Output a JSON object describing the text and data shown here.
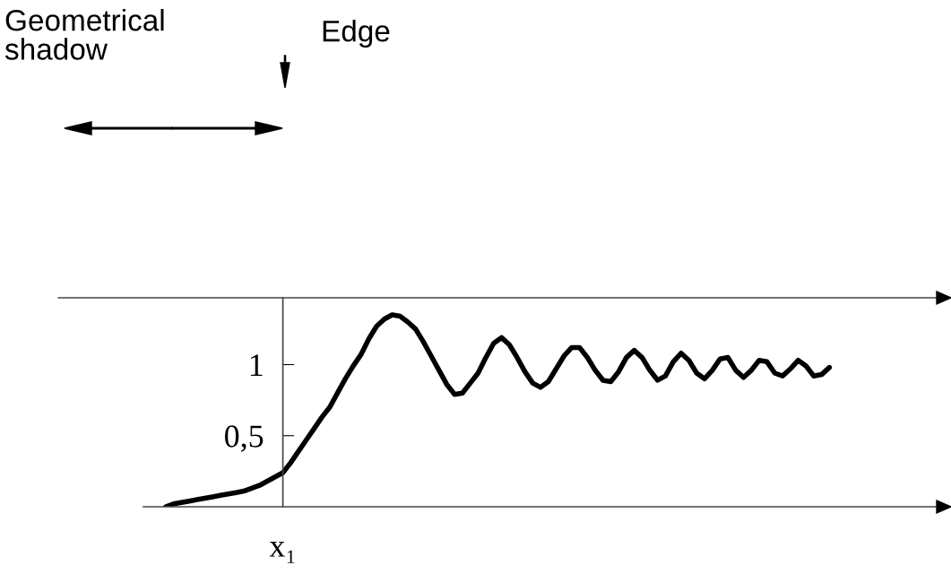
{
  "chart_data": {
    "type": "line",
    "categories": [
      null,
      null,
      null,
      null,
      null,
      null,
      null,
      null,
      null,
      null,
      null,
      null,
      null,
      null,
      null,
      "x₁",
      null,
      null,
      null,
      null,
      null,
      null,
      null,
      null,
      null,
      null,
      null,
      null,
      null,
      null,
      null,
      null,
      null,
      null,
      null,
      null,
      null,
      null,
      null,
      null,
      null,
      null,
      null,
      null,
      null,
      null,
      null,
      null,
      null,
      null,
      null,
      null,
      null,
      null,
      null,
      null,
      null,
      null,
      null,
      null,
      null,
      null,
      null,
      null,
      null,
      null,
      null,
      null,
      null,
      null,
      null,
      null,
      null,
      null,
      null,
      null,
      null,
      null,
      null,
      null,
      null,
      null,
      null,
      null,
      null,
      null
    ],
    "series": [
      {
        "color": "#000000",
        "values": [
          0.0,
          0.02,
          0.03,
          0.04,
          0.05,
          0.06,
          0.07,
          0.08,
          0.09,
          0.1,
          0.11,
          0.13,
          0.15,
          0.18,
          0.21,
          0.24,
          0.31,
          0.39,
          0.47,
          0.55,
          0.63,
          0.7,
          0.8,
          0.9,
          0.99,
          1.07,
          1.18,
          1.27,
          1.32,
          1.35,
          1.34,
          1.3,
          1.25,
          1.16,
          1.06,
          0.96,
          0.86,
          0.79,
          0.8,
          0.87,
          0.94,
          1.05,
          1.15,
          1.19,
          1.14,
          1.05,
          0.95,
          0.87,
          0.84,
          0.88,
          0.97,
          1.06,
          1.12,
          1.12,
          1.05,
          0.96,
          0.89,
          0.88,
          0.95,
          1.05,
          1.1,
          1.05,
          0.96,
          0.89,
          0.92,
          1.02,
          1.08,
          1.03,
          0.94,
          0.9,
          0.96,
          1.04,
          1.05,
          0.96,
          0.91,
          0.96,
          1.03,
          1.02,
          0.94,
          0.92,
          0.97,
          1.03,
          0.99,
          0.92,
          0.93,
          0.98
        ]
      }
    ],
    "ylim": [
      0,
      1.47
    ],
    "yticks": [
      {
        "value": 0.5,
        "label": "0,5"
      },
      1
    ],
    "grid": false,
    "legend": false,
    "marker": "none",
    "line_style": "solid",
    "annotations": [
      "Geometrical\nshadow",
      "Edge"
    ]
  }
}
